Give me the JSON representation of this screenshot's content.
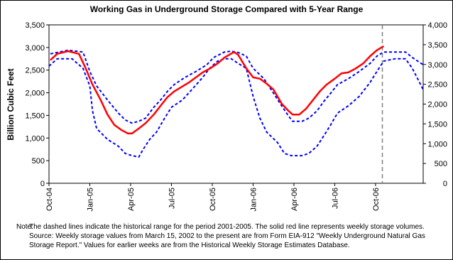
{
  "chart_data": {
    "type": "line",
    "title": "Working Gas in Underground Storage Compared with 5-Year Range",
    "y_label": "Billion Cubic Feet",
    "note_label": "Note:",
    "note": "The dashed lines indicate the historical range for the period 2001-2005.  The solid red line represents weekly storage volumes.  Source:  Weekly storage values from March 15, 2002 to the present are from Form EIA-912 \"Weekly Underground Natural Gas Storage Report.\"  Values for earlier weeks are from the Historical Weekly Storage Estimates Database.",
    "xlim": [
      0,
      27.5
    ],
    "xticks": [
      {
        "value": 0,
        "label": "Oct-04"
      },
      {
        "value": 3,
        "label": "Jan-05"
      },
      {
        "value": 6,
        "label": "Apr-05"
      },
      {
        "value": 9,
        "label": "Jul-05"
      },
      {
        "value": 12,
        "label": "Oct-05"
      },
      {
        "value": 15,
        "label": "Jan-06"
      },
      {
        "value": 18,
        "label": "Apr-06"
      },
      {
        "value": 21,
        "label": "Jul-06"
      },
      {
        "value": 24,
        "label": "Oct-06"
      }
    ],
    "ylim": [
      0,
      3500
    ],
    "yticks": [
      0,
      500,
      {
        "value": 1000,
        "label": "1,000"
      },
      {
        "value": 1500,
        "label": "1,500"
      },
      {
        "value": 2000,
        "label": "2,000"
      },
      {
        "value": 2500,
        "label": "2,500"
      },
      {
        "value": 3000,
        "label": "3,000"
      },
      {
        "value": 3500,
        "label": "3,500"
      }
    ],
    "y2lim": [
      0,
      4000
    ],
    "y2ticks": [
      0,
      500,
      {
        "value": 1000,
        "label": "1,000"
      },
      {
        "value": 1500,
        "label": "1,500"
      },
      {
        "value": 2000,
        "label": "2,000"
      },
      {
        "value": 2500,
        "label": "2,500"
      },
      {
        "value": 3000,
        "label": "3,000"
      },
      {
        "value": 3500,
        "label": "3,500"
      },
      {
        "value": 4000,
        "label": "4,000"
      }
    ],
    "vline": {
      "x": 24.5,
      "color": "#808080"
    },
    "series": [
      {
        "color": "#0000ff",
        "dashed": true,
        "x": [
          0.1,
          1.4,
          2.5,
          3.0,
          3.5,
          4.3,
          5.1,
          5.6,
          6.1,
          6.6,
          7.1,
          7.7,
          8.2,
          8.7,
          9.2,
          10.0,
          10.8,
          11.6,
          12.1,
          12.9,
          13.4,
          13.9,
          14.5,
          15.0,
          15.8,
          16.5,
          17.1,
          17.6,
          17.9,
          18.6,
          19.1,
          19.7,
          20.2,
          20.7,
          21.2,
          22.0,
          22.8,
          23.6,
          24.1,
          24.6,
          25.4,
          26.2,
          26.7,
          27.5
        ],
        "values": [
          2860,
          2940,
          2900,
          2470,
          2150,
          1840,
          1550,
          1400,
          1330,
          1370,
          1440,
          1680,
          1840,
          2030,
          2180,
          2340,
          2470,
          2620,
          2780,
          2900,
          2920,
          2890,
          2810,
          2540,
          2310,
          1990,
          1710,
          1490,
          1370,
          1370,
          1440,
          1600,
          1810,
          1990,
          2180,
          2310,
          2470,
          2650,
          2810,
          2900,
          2900,
          2900,
          2780,
          2620
        ]
      },
      {
        "color": "#0000ff",
        "dashed": true,
        "x": [
          0.0,
          0.6,
          1.7,
          2.5,
          3.0,
          3.2,
          3.5,
          4.3,
          5.1,
          5.6,
          6.1,
          6.6,
          6.9,
          7.4,
          7.9,
          8.5,
          9.0,
          9.8,
          10.5,
          11.3,
          11.8,
          12.4,
          12.9,
          13.4,
          13.9,
          14.5,
          15.0,
          15.5,
          16.0,
          16.8,
          17.3,
          17.8,
          18.6,
          19.1,
          19.7,
          20.2,
          20.7,
          21.2,
          22.0,
          22.8,
          23.6,
          24.1,
          24.6,
          25.4,
          26.2,
          26.7,
          27.5
        ],
        "values": [
          2590,
          2750,
          2750,
          2540,
          2150,
          1600,
          1210,
          970,
          820,
          660,
          610,
          580,
          740,
          970,
          1130,
          1440,
          1680,
          1840,
          2070,
          2340,
          2540,
          2700,
          2750,
          2750,
          2650,
          2540,
          1920,
          1440,
          1130,
          900,
          660,
          610,
          610,
          660,
          820,
          1050,
          1290,
          1550,
          1710,
          1920,
          2230,
          2470,
          2700,
          2750,
          2750,
          2540,
          2070
        ]
      },
      {
        "color": "#ff0000",
        "dashed": false,
        "x": [
          0.1,
          0.6,
          1.4,
          2.2,
          2.7,
          3.2,
          3.8,
          4.3,
          4.8,
          5.3,
          5.8,
          6.1,
          6.6,
          7.1,
          7.7,
          8.2,
          8.7,
          9.2,
          9.8,
          10.3,
          10.8,
          11.3,
          11.8,
          12.4,
          12.9,
          13.6,
          13.9,
          14.5,
          15.0,
          15.5,
          16.0,
          16.5,
          17.1,
          17.6,
          17.9,
          18.4,
          18.9,
          19.4,
          19.9,
          20.4,
          21.0,
          21.5,
          22.0,
          22.5,
          23.1,
          23.6,
          24.1,
          24.6
        ],
        "values": [
          2720,
          2860,
          2920,
          2860,
          2540,
          2180,
          1840,
          1520,
          1290,
          1180,
          1100,
          1100,
          1210,
          1330,
          1520,
          1710,
          1900,
          2030,
          2140,
          2230,
          2340,
          2450,
          2530,
          2650,
          2780,
          2900,
          2840,
          2540,
          2340,
          2310,
          2200,
          2070,
          1760,
          1600,
          1520,
          1520,
          1650,
          1840,
          2030,
          2180,
          2310,
          2430,
          2450,
          2530,
          2650,
          2810,
          2940,
          3030
        ]
      }
    ]
  }
}
